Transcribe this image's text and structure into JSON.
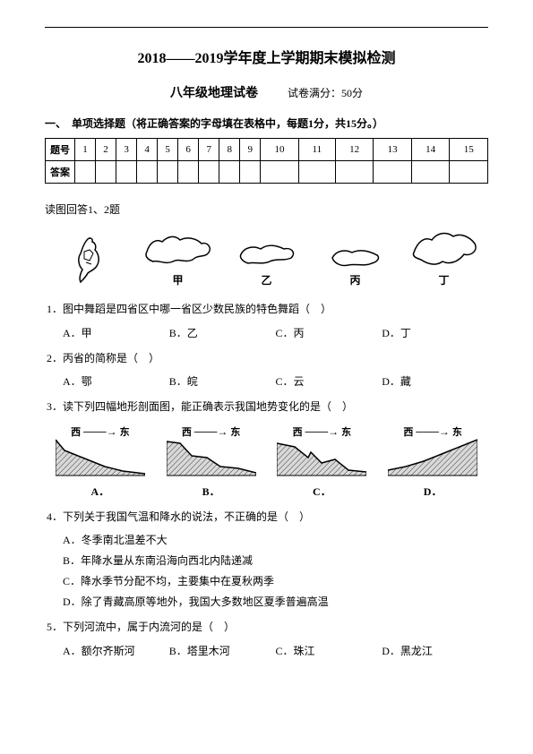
{
  "header": {
    "title": "2018——2019学年度上学期期末模拟检测",
    "subtitle": "八年级地理试卷",
    "score_note": "试卷满分：50分"
  },
  "section1": {
    "head": "一、　单项选择题（将正确答案的字母填在表格中，每题1分，共15分。）",
    "row_label_num": "题号",
    "row_label_ans": "答案",
    "nums": [
      "1",
      "2",
      "3",
      "4",
      "5",
      "6",
      "7",
      "8",
      "9",
      "10",
      "11",
      "12",
      "13",
      "14",
      "15"
    ]
  },
  "fig1": {
    "instr": "读图回答1、2题",
    "labels": [
      "甲",
      "乙",
      "丙",
      "丁"
    ]
  },
  "q1": {
    "text": "1．图中舞蹈是四省区中哪一省区少数民族的特色舞蹈（　）",
    "opts": {
      "A": "A．甲",
      "B": "B．乙",
      "C": "C．丙",
      "D": "D．丁"
    }
  },
  "q2": {
    "text": "2．丙省的简称是（　）",
    "opts": {
      "A": "A．鄂",
      "B": "B．皖",
      "C": "C．云",
      "D": "D．藏"
    }
  },
  "q3": {
    "text": "3．读下列四幅地形剖面图，能正确表示我国地势变化的是（　）",
    "dir_west": "西",
    "dir_east": "东",
    "opts": {
      "A": "A．",
      "B": "B．",
      "C": "C．",
      "D": "D．"
    }
  },
  "q4": {
    "text": "4．下列关于我国气温和降水的说法，不正确的是（　）",
    "stmts": {
      "A": "A．冬季南北温差不大",
      "B": "B．年降水量从东南沿海向西北内陆递减",
      "C": "C．降水季节分配不均，主要集中在夏秋两季",
      "D": "D．除了青藏高原等地外，我国大多数地区夏季普遍高温"
    }
  },
  "q5": {
    "text": "5．下列河流中，属于内流河的是（　）",
    "opts": {
      "A": "A．额尔齐斯河",
      "B": "B．塔里木河",
      "C": "C．珠江",
      "D": "D．黑龙江"
    }
  },
  "terrain": {
    "profiles": [
      [
        [
          0,
          40
        ],
        [
          10,
          28
        ],
        [
          20,
          24
        ],
        [
          35,
          18
        ],
        [
          55,
          10
        ],
        [
          75,
          5
        ],
        [
          100,
          2
        ]
      ],
      [
        [
          0,
          38
        ],
        [
          15,
          36
        ],
        [
          28,
          22
        ],
        [
          45,
          20
        ],
        [
          60,
          10
        ],
        [
          80,
          8
        ],
        [
          100,
          3
        ]
      ],
      [
        [
          0,
          36
        ],
        [
          20,
          32
        ],
        [
          35,
          20
        ],
        [
          38,
          26
        ],
        [
          50,
          14
        ],
        [
          65,
          18
        ],
        [
          80,
          6
        ],
        [
          100,
          4
        ]
      ],
      [
        [
          0,
          6
        ],
        [
          20,
          10
        ],
        [
          40,
          16
        ],
        [
          60,
          24
        ],
        [
          80,
          32
        ],
        [
          100,
          40
        ]
      ]
    ],
    "fill": "#000000",
    "grid": "#000000"
  },
  "maps": {
    "dancer_stroke": "#000000",
    "outline_stroke": "#000000"
  }
}
